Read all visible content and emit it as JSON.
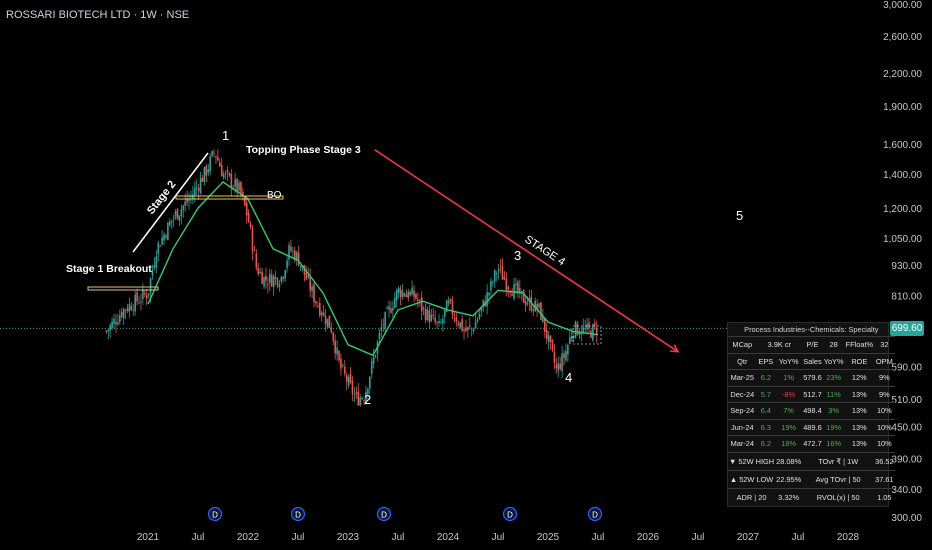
{
  "header": {
    "title": "ROSSARI BIOTECH LTD · 1W · NSE"
  },
  "colors": {
    "background": "#000000",
    "up": "#26a69a",
    "down": "#ef5350",
    "ma": "#2ecc71",
    "trendline": "#f23645",
    "price_line": "#26a69a"
  },
  "current_price": "699.60",
  "chart_data": {
    "type": "candlestick",
    "title": "ROSSARI BIOTECH LTD · 1W · NSE",
    "y_scale": "log",
    "ylim": [
      300,
      3000
    ],
    "y_ticks": [
      "3,000.00",
      "2,600.00",
      "2,200.00",
      "1,900.00",
      "1,600.00",
      "1,400.00",
      "1,200.00",
      "1,050.00",
      "930.00",
      "810.00",
      "690.00",
      "590.00",
      "510.00",
      "450.00",
      "390.00",
      "340.00",
      "300.00"
    ],
    "x_ticks": [
      "2021",
      "Jul",
      "2022",
      "Jul",
      "2023",
      "Jul",
      "2024",
      "Jul",
      "2025",
      "Jul",
      "2026",
      "Jul",
      "2027",
      "Jul",
      "2028"
    ],
    "grid": false,
    "close_path": [
      [
        "2020-08",
        690
      ],
      [
        "2020-10",
        760
      ],
      [
        "2021-01",
        820
      ],
      [
        "2021-02",
        1000
      ],
      [
        "2021-04",
        1150
      ],
      [
        "2021-06",
        1250
      ],
      [
        "2021-08",
        1420
      ],
      [
        "2021-09",
        1550
      ],
      [
        "2021-10",
        1400
      ],
      [
        "2021-12",
        1300
      ],
      [
        "2022-01",
        1150
      ],
      [
        "2022-02",
        920
      ],
      [
        "2022-03",
        870
      ],
      [
        "2022-05",
        880
      ],
      [
        "2022-06",
        1000
      ],
      [
        "2022-07",
        960
      ],
      [
        "2022-09",
        800
      ],
      [
        "2022-11",
        700
      ],
      [
        "2022-12",
        590
      ],
      [
        "2023-02",
        510
      ],
      [
        "2023-03",
        520
      ],
      [
        "2023-05",
        700
      ],
      [
        "2023-07",
        830
      ],
      [
        "2023-09",
        810
      ],
      [
        "2023-10",
        760
      ],
      [
        "2023-12",
        700
      ],
      [
        "2024-01",
        780
      ],
      [
        "2024-03",
        690
      ],
      [
        "2024-04",
        700
      ],
      [
        "2024-06",
        830
      ],
      [
        "2024-07",
        920
      ],
      [
        "2024-08",
        860
      ],
      [
        "2024-10",
        800
      ],
      [
        "2024-12",
        760
      ],
      [
        "2025-02",
        580
      ],
      [
        "2025-03",
        620
      ],
      [
        "2025-04",
        700
      ],
      [
        "2025-06",
        690
      ],
      [
        "2025-07",
        699.6
      ]
    ],
    "moving_average_path": [
      [
        "2021-01",
        780
      ],
      [
        "2021-04",
        1000
      ],
      [
        "2021-07",
        1200
      ],
      [
        "2021-10",
        1350
      ],
      [
        "2022-01",
        1250
      ],
      [
        "2022-04",
        1000
      ],
      [
        "2022-07",
        950
      ],
      [
        "2022-10",
        820
      ],
      [
        "2023-01",
        650
      ],
      [
        "2023-04",
        620
      ],
      [
        "2023-07",
        760
      ],
      [
        "2023-10",
        790
      ],
      [
        "2024-01",
        760
      ],
      [
        "2024-04",
        740
      ],
      [
        "2024-07",
        830
      ],
      [
        "2024-10",
        820
      ],
      [
        "2025-01",
        720
      ],
      [
        "2025-04",
        690
      ],
      [
        "2025-07",
        680
      ]
    ],
    "annotations": [
      {
        "text": "1",
        "date": "2021-09",
        "price": 1550
      },
      {
        "text": "2",
        "date": "2023-02",
        "price": 510
      },
      {
        "text": "3",
        "date": "2024-07",
        "price": 920
      },
      {
        "text": "4",
        "date": "2025-02",
        "price": 580
      },
      {
        "text": "5"
      },
      {
        "text": "Stage 1 Breakout"
      },
      {
        "text": "Stage 2"
      },
      {
        "text": "Topping Phase Stage 3"
      },
      {
        "text": "BO"
      },
      {
        "text": "STAGE 4"
      }
    ],
    "trendline": [
      [
        "2023-06",
        1560
      ],
      [
        "2026-04",
        630
      ]
    ],
    "event_markers": [
      "D",
      "D",
      "D",
      "D",
      "D"
    ]
  },
  "fundamentals": {
    "header": "Process Industries--Chemicals: Specialty",
    "summary": [
      "MCap",
      "3.9K cr",
      "P/E",
      "28",
      "FFloat%",
      "32"
    ],
    "columns": [
      "Qtr",
      "EPS",
      "YoY%",
      "Sales",
      "YoY%",
      "ROE",
      "OPM"
    ],
    "rows": [
      {
        "qtr": "Mar-25",
        "eps": "6.2",
        "eps_yoy": "1%",
        "sales": "579.6",
        "sales_yoy": "23%",
        "roe": "12%",
        "opm": "9%"
      },
      {
        "qtr": "Dec-24",
        "eps": "5.7",
        "eps_yoy": "-8%",
        "sales": "512.7",
        "sales_yoy": "11%",
        "roe": "13%",
        "opm": "9%"
      },
      {
        "qtr": "Sep-24",
        "eps": "6.4",
        "eps_yoy": "7%",
        "sales": "498.4",
        "sales_yoy": "3%",
        "roe": "13%",
        "opm": "10%"
      },
      {
        "qtr": "Jun-24",
        "eps": "6.3",
        "eps_yoy": "19%",
        "sales": "489.6",
        "sales_yoy": "19%",
        "roe": "13%",
        "opm": "10%"
      },
      {
        "qtr": "Mar-24",
        "eps": "6.2",
        "eps_yoy": "18%",
        "sales": "472.7",
        "sales_yoy": "16%",
        "roe": "13%",
        "opm": "10%"
      }
    ],
    "stats": [
      [
        "▼ 52W HIGH",
        "28.08%",
        "TOvr ₹ | 1W",
        "36.52"
      ],
      [
        "▲ 52W LOW",
        "22.95%",
        "Avg TOvr | 50",
        "37.61"
      ],
      [
        "ADR | 20",
        "3.32%",
        "RVOL(x) | 50",
        "1.05"
      ]
    ]
  }
}
